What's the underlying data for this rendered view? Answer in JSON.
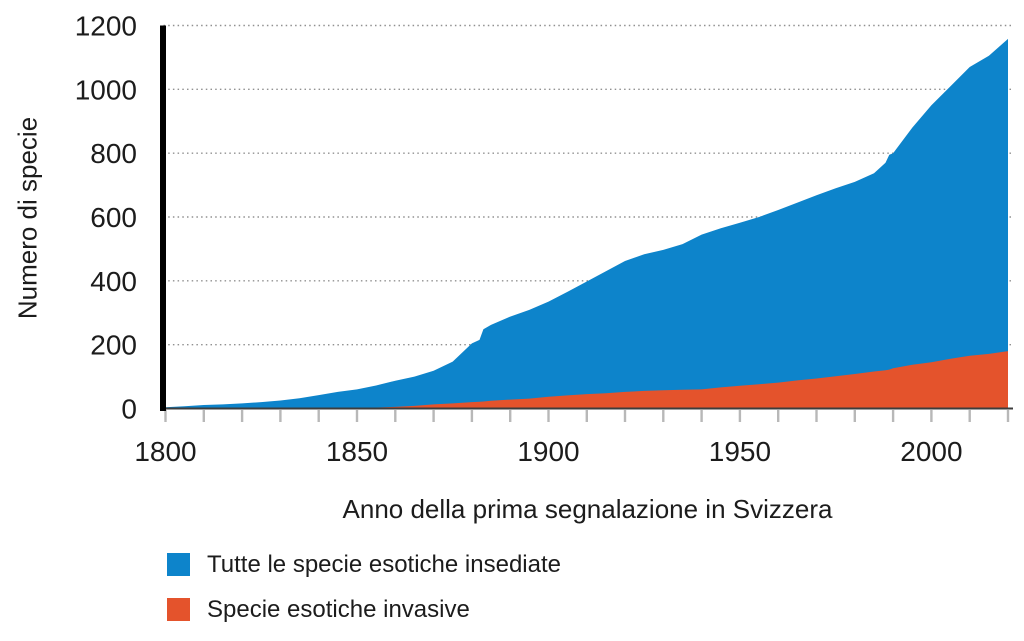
{
  "colors": {
    "established": "#0d84cb",
    "invasive": "#e4532c",
    "axis_bar": "#000000",
    "axis_line": "#3d3d3d",
    "grid": "#909090",
    "tick": "#b8b8b8",
    "text": "#1c1c1c"
  },
  "y_axis": {
    "title": "Numero di specie",
    "ticks": [
      0,
      200,
      400,
      600,
      800,
      1000,
      1200
    ]
  },
  "x_axis": {
    "title": "Anno della prima segnalazione in Svizzera",
    "ticks": [
      1800,
      1850,
      1900,
      1950,
      2000
    ],
    "minor_step": 10
  },
  "legend": [
    {
      "label": "Tutte le specie esotiche insediate",
      "color": "#0d84cb"
    },
    {
      "label": "Specie esotiche invasive",
      "color": "#e4532c"
    }
  ],
  "chart_data": {
    "type": "area",
    "title": "",
    "xlabel": "Anno della prima segnalazione in Svizzera",
    "ylabel": "Numero di specie",
    "xlim": [
      1800,
      2020
    ],
    "ylim": [
      0,
      1200
    ],
    "grid": "horizontal-dotted",
    "legend_position": "bottom-left",
    "x": [
      1800,
      1805,
      1810,
      1815,
      1820,
      1825,
      1830,
      1835,
      1840,
      1845,
      1850,
      1855,
      1860,
      1865,
      1870,
      1875,
      1880,
      1882,
      1883,
      1885,
      1890,
      1895,
      1900,
      1905,
      1910,
      1915,
      1920,
      1925,
      1930,
      1935,
      1940,
      1945,
      1950,
      1955,
      1960,
      1965,
      1970,
      1975,
      1980,
      1985,
      1988,
      1989,
      1990,
      1995,
      2000,
      2005,
      2010,
      2015,
      2020
    ],
    "series": [
      {
        "name": "Tutte le specie esotiche insediate",
        "color": "#0d84cb",
        "values": [
          4,
          7,
          11,
          13,
          16,
          20,
          25,
          32,
          42,
          52,
          60,
          72,
          87,
          100,
          118,
          147,
          204,
          215,
          248,
          262,
          288,
          309,
          335,
          366,
          398,
          430,
          462,
          483,
          497,
          515,
          545,
          565,
          582,
          600,
          622,
          645,
          668,
          690,
          710,
          737,
          770,
          795,
          800,
          880,
          950,
          1010,
          1070,
          1105,
          1158
        ]
      },
      {
        "name": "Specie esotiche invasive",
        "color": "#e4532c",
        "values": [
          0,
          0,
          0,
          0,
          0,
          0,
          0,
          0,
          0,
          1,
          2,
          3,
          5,
          8,
          13,
          16,
          20,
          21,
          22,
          24,
          28,
          31,
          37,
          41,
          45,
          48,
          52,
          55,
          57,
          59,
          60,
          66,
          71,
          76,
          81,
          88,
          94,
          101,
          108,
          116,
          120,
          122,
          126,
          137,
          145,
          156,
          165,
          171,
          180
        ]
      }
    ]
  }
}
